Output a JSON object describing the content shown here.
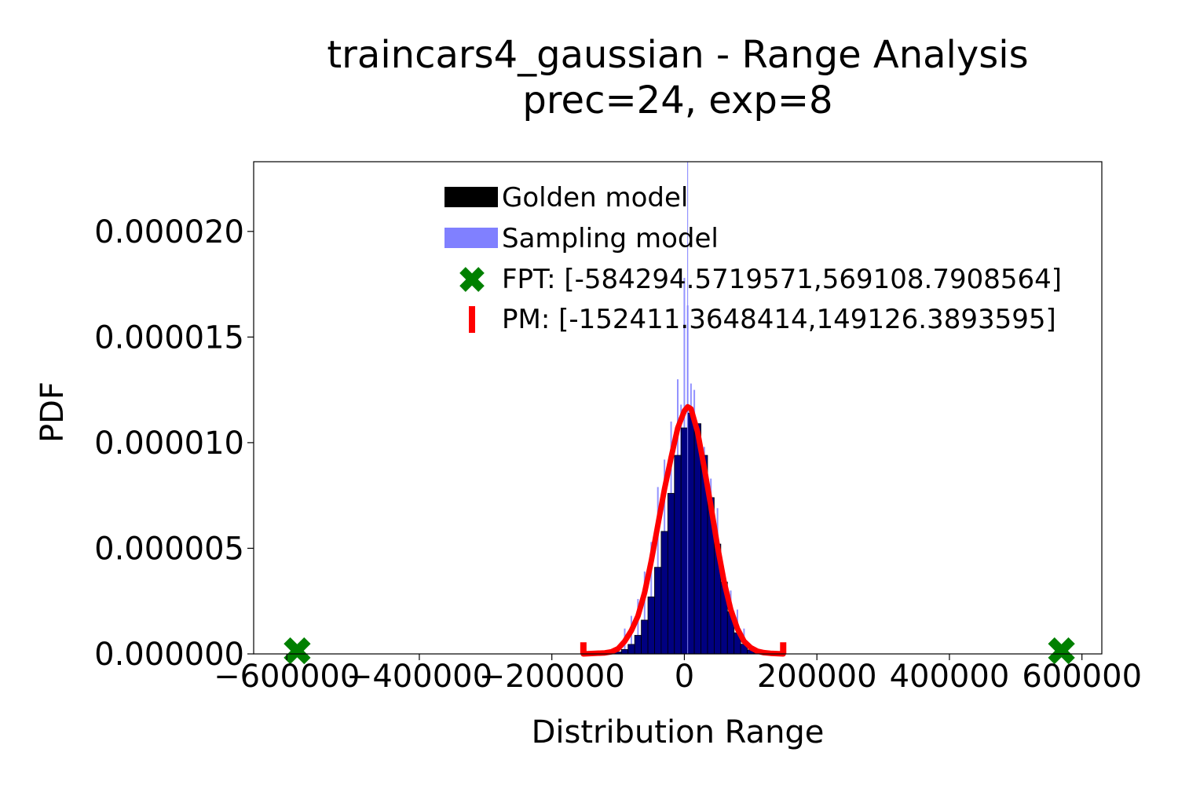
{
  "chart_data": {
    "type": "bar",
    "title": "traincars4_gaussian - Range Analysis",
    "subtitle": "prec=24, exp=8",
    "xlabel": "Distribution Range",
    "ylabel": "PDF",
    "xlim": [
      -650000,
      630000
    ],
    "ylim": [
      0,
      2.33e-05
    ],
    "xticks": [
      -600000,
      -400000,
      -200000,
      0,
      200000,
      400000,
      600000
    ],
    "xtick_labels": [
      "−600000",
      "−400000",
      "−200000",
      "0",
      "200000",
      "400000",
      "600000"
    ],
    "yticks": [
      0,
      5e-06,
      1e-05,
      1.5e-05,
      2e-05
    ],
    "ytick_labels": [
      "0.000000",
      "0.000005",
      "0.000010",
      "0.000015",
      "0.000020"
    ],
    "grid": false,
    "legend_position": "top-center",
    "legend": [
      {
        "label": "Golden model",
        "marker": "bar",
        "color": "#000000"
      },
      {
        "label": "Sampling model",
        "marker": "bar",
        "color": "#8080ff"
      },
      {
        "label": "FPT: [-584294.5719571,569108.7908564]",
        "marker": "x",
        "color": "#008000"
      },
      {
        "label": "PM: [-152411.3648414,149126.3893595]",
        "marker": "vline",
        "color": "#ff0000"
      }
    ],
    "series": [
      {
        "name": "Golden model",
        "kind": "histogram",
        "color": "#000080",
        "x": [
          -150000,
          -140000,
          -130000,
          -120000,
          -110000,
          -100000,
          -90000,
          -80000,
          -70000,
          -60000,
          -50000,
          -40000,
          -30000,
          -20000,
          -10000,
          0,
          10000,
          20000,
          30000,
          40000,
          50000,
          60000,
          70000,
          80000,
          90000,
          100000,
          110000,
          120000,
          130000,
          140000,
          150000
        ],
        "values": [
          0,
          0,
          0,
          1e-08,
          4e-08,
          9e-08,
          2.1e-07,
          4.5e-07,
          8.8e-07,
          1.6e-06,
          2.7e-06,
          4.1e-06,
          5.8e-06,
          7.6e-06,
          9.4e-06,
          1.07e-05,
          1.14e-05,
          1.09e-05,
          9.4e-06,
          7.4e-06,
          5.2e-06,
          3.4e-06,
          2e-06,
          1e-06,
          4.6e-07,
          1.9e-07,
          7e-08,
          2e-08,
          1e-08,
          0,
          0
        ]
      },
      {
        "name": "Sampling model",
        "kind": "histogram",
        "color": "#8080ff",
        "x": [
          -90000,
          -80000,
          -70000,
          -60000,
          -50000,
          -40000,
          -30000,
          -20000,
          -10000,
          -5000,
          0,
          5000,
          10000,
          15000,
          20000,
          30000,
          40000,
          50000,
          60000,
          70000,
          80000,
          90000
        ],
        "values": [
          1.2e-06,
          1.8e-06,
          2.6e-06,
          3.9e-06,
          5.3e-06,
          7.9e-06,
          9.2e-06,
          1.1e-05,
          1.3e-05,
          1.18e-05,
          1.78e-05,
          1.65e-05,
          1.28e-05,
          1.25e-05,
          1.04e-05,
          9.8e-06,
          8.3e-06,
          6.9e-06,
          3.6e-06,
          3e-06,
          2.1e-06,
          1.2e-06
        ]
      },
      {
        "name": "PM",
        "kind": "line",
        "color": "#ff0000",
        "x": [
          -152411,
          -140000,
          -120000,
          -110000,
          -100000,
          -90000,
          -80000,
          -70000,
          -60000,
          -50000,
          -40000,
          -30000,
          -20000,
          -10000,
          0,
          5000,
          10000,
          20000,
          30000,
          40000,
          50000,
          60000,
          70000,
          80000,
          90000,
          100000,
          110000,
          120000,
          130000,
          149126
        ],
        "values": [
          0,
          2e-08,
          5e-08,
          1e-07,
          2.5e-07,
          6e-07,
          1.1e-06,
          1.8e-06,
          2.9e-06,
          4.4e-06,
          6.1e-06,
          7.8e-06,
          9.3e-06,
          1.07e-05,
          1.15e-05,
          1.17e-05,
          1.16e-05,
          1.05e-05,
          8.8e-06,
          7e-06,
          5.1e-06,
          3.4e-06,
          2.1e-06,
          1.2e-06,
          6e-07,
          3e-07,
          1.3e-07,
          6e-08,
          3e-08,
          0
        ]
      }
    ],
    "fpt_range": [
      -584294.5719571,
      569108.7908564
    ],
    "pm_range": [
      -152411.3648414,
      149126.3893595
    ],
    "pm_marker_height": 5.5e-07,
    "center_line_x": 5000
  }
}
